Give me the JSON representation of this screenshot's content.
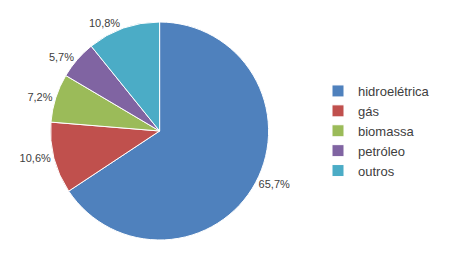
{
  "chart_data": {
    "type": "pie",
    "categories": [
      "hidroelétrica",
      "gás",
      "biomassa",
      "petróleo",
      "outros"
    ],
    "values": [
      65.7,
      10.6,
      7.2,
      5.7,
      10.8
    ],
    "value_labels": [
      "65,7%",
      "10,6%",
      "7,2%",
      "5,7%",
      "10,8%"
    ],
    "colors": [
      "#4f81bd",
      "#c0504d",
      "#9bbb59",
      "#8064a2",
      "#4bacc6"
    ],
    "data_labels": true,
    "legend": "right"
  }
}
